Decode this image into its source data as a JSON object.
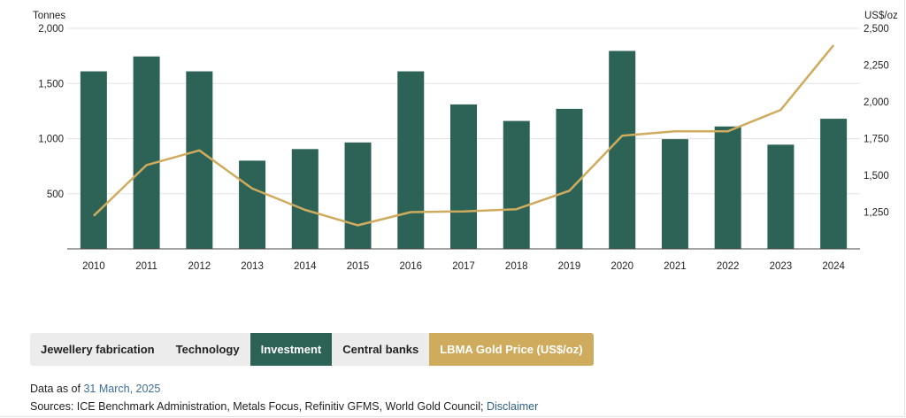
{
  "chart_data": {
    "type": "bar",
    "categories": [
      "2010",
      "2011",
      "2012",
      "2013",
      "2014",
      "2015",
      "2016",
      "2017",
      "2018",
      "2019",
      "2020",
      "2021",
      "2022",
      "2023",
      "2024"
    ],
    "series": [
      {
        "values": [
          1610,
          1745,
          1610,
          800,
          905,
          965,
          1610,
          1310,
          1160,
          1270,
          1795,
          995,
          1110,
          945,
          1180
        ],
        "color": "#2d6356"
      },
      {
        "type": "line",
        "axis": "right",
        "values": [
          1225,
          1570,
          1670,
          1410,
          1265,
          1160,
          1250,
          1255,
          1270,
          1395,
          1770,
          1800,
          1800,
          1945,
          2385
        ],
        "color": "#cfab5e"
      }
    ],
    "ylabel": "Tonnes",
    "y2label": "US$/oz",
    "ylim": [
      0,
      2000
    ],
    "y2lim": [
      1000,
      2500
    ],
    "yticks": [
      "500",
      "1,000",
      "1,500",
      "2,000"
    ],
    "y2ticks": [
      "1,250",
      "1,500",
      "1,750",
      "2,000",
      "2,250",
      "2,500"
    ],
    "grid": true
  },
  "tabs": [
    {
      "label": "Jewellery fabrication"
    },
    {
      "label": "Technology"
    },
    {
      "label": "Investment"
    },
    {
      "label": "Central banks"
    },
    {
      "label": "LBMA Gold Price (US$/oz)"
    }
  ],
  "footer": {
    "data_as_of_label": "Data as of",
    "data_as_of_date": "31 March, 2025",
    "sources_text": "Sources: ICE Benchmark Administration, Metals Focus, Refinitiv GFMS, World Gold Council;",
    "disclaimer_link": "Disclaimer"
  }
}
